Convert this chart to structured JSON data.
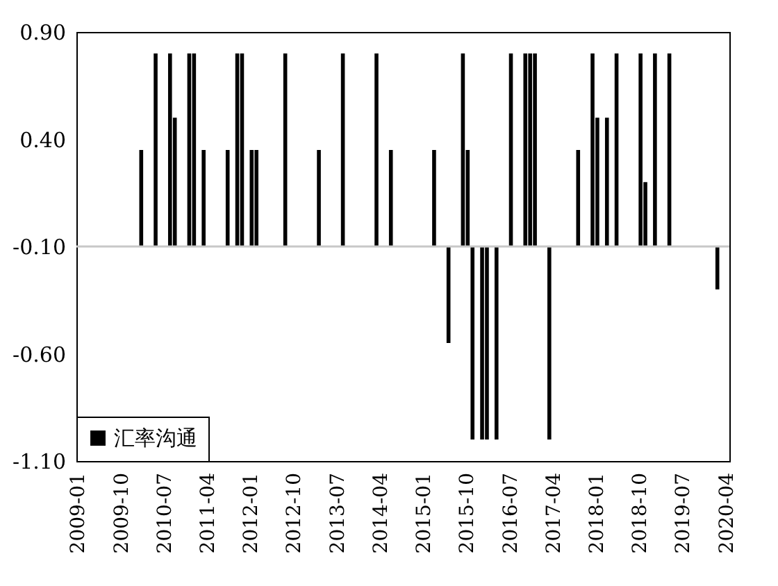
{
  "chart_data": {
    "type": "bar",
    "categories": [
      "2009-01",
      null,
      null,
      null,
      null,
      null,
      null,
      null,
      null,
      "2009-10",
      null,
      null,
      null,
      null,
      null,
      null,
      null,
      null,
      "2010-07",
      null,
      null,
      null,
      null,
      null,
      null,
      null,
      null,
      "2011-04",
      null,
      null,
      null,
      null,
      null,
      null,
      null,
      null,
      "2012-01",
      null,
      null,
      null,
      null,
      null,
      null,
      null,
      null,
      "2012-10",
      null,
      null,
      null,
      null,
      null,
      null,
      null,
      null,
      "2013-07",
      null,
      null,
      null,
      null,
      null,
      null,
      null,
      null,
      "2014-04",
      null,
      null,
      null,
      null,
      null,
      null,
      null,
      null,
      "2015-01",
      null,
      null,
      null,
      null,
      null,
      null,
      null,
      null,
      "2015-10",
      null,
      null,
      null,
      null,
      null,
      null,
      null,
      null,
      "2016-07",
      null,
      null,
      null,
      null,
      null,
      null,
      null,
      null,
      "2017-04",
      null,
      null,
      null,
      null,
      null,
      null,
      null,
      null,
      "2018-01",
      null,
      null,
      null,
      null,
      null,
      null,
      null,
      null,
      "2018-10",
      null,
      null,
      null,
      null,
      null,
      null,
      null,
      null,
      "2019-07",
      null,
      null,
      null,
      null,
      null,
      null,
      null,
      null,
      "2020-04"
    ],
    "series": [
      {
        "name": "汇率沟通",
        "color": "#000000",
        "values": [
          null,
          null,
          null,
          null,
          null,
          null,
          null,
          null,
          null,
          null,
          null,
          null,
          null,
          0.45,
          null,
          null,
          0.9,
          null,
          null,
          0.9,
          0.6,
          null,
          null,
          0.9,
          0.9,
          null,
          0.45,
          null,
          null,
          null,
          null,
          0.45,
          null,
          0.9,
          0.9,
          null,
          0.45,
          0.45,
          null,
          null,
          null,
          null,
          null,
          0.9,
          null,
          null,
          null,
          null,
          null,
          null,
          0.45,
          null,
          null,
          null,
          null,
          0.9,
          null,
          null,
          null,
          null,
          null,
          null,
          0.9,
          null,
          null,
          0.45,
          null,
          null,
          null,
          null,
          null,
          null,
          null,
          null,
          0.45,
          null,
          null,
          -0.45,
          null,
          null,
          0.9,
          0.45,
          -0.9,
          null,
          -0.9,
          -0.9,
          null,
          -0.9,
          null,
          null,
          0.9,
          null,
          null,
          0.9,
          0.9,
          0.9,
          null,
          null,
          -0.9,
          null,
          null,
          null,
          null,
          null,
          0.45,
          null,
          null,
          0.9,
          0.6,
          null,
          0.6,
          null,
          0.9,
          null,
          null,
          null,
          null,
          0.9,
          0.3,
          null,
          0.9,
          null,
          null,
          0.9,
          null,
          null,
          null,
          null,
          null,
          null,
          null,
          null,
          null,
          -0.2,
          null,
          null
        ],
        "base": [
          null,
          null,
          null,
          null,
          null,
          null,
          null,
          null,
          null,
          null,
          null,
          null,
          null,
          -0.1,
          null,
          null,
          -0.1,
          null,
          null,
          -0.1,
          -0.1,
          null,
          null,
          -0.1,
          -0.1,
          null,
          -0.1,
          null,
          null,
          null,
          null,
          -0.1,
          null,
          -0.1,
          -0.1,
          null,
          -0.1,
          -0.1,
          null,
          null,
          null,
          null,
          null,
          -0.1,
          null,
          null,
          null,
          null,
          null,
          null,
          -0.1,
          null,
          null,
          null,
          null,
          -0.1,
          null,
          null,
          null,
          null,
          null,
          null,
          -0.1,
          null,
          null,
          -0.1,
          null,
          null,
          null,
          null,
          null,
          null,
          null,
          null,
          -0.1,
          null,
          null,
          -0.1,
          null,
          null,
          -0.1,
          -0.1,
          -0.1,
          null,
          -0.1,
          -0.1,
          null,
          -0.1,
          null,
          null,
          -0.1,
          null,
          null,
          -0.1,
          -0.1,
          -0.1,
          null,
          null,
          -0.1,
          null,
          null,
          null,
          null,
          null,
          -0.1,
          null,
          null,
          -0.1,
          -0.1,
          null,
          -0.1,
          null,
          -0.1,
          null,
          null,
          null,
          null,
          -0.1,
          -0.1,
          null,
          -0.1,
          null,
          null,
          -0.1,
          null,
          null,
          null,
          null,
          null,
          null,
          null,
          null,
          null,
          -0.1,
          null,
          null
        ]
      }
    ],
    "ylim": [
      -1.1,
      0.9
    ],
    "yticks": [
      {
        "value": 0.9,
        "label": "0.90"
      },
      {
        "value": 0.4,
        "label": "0.40"
      },
      {
        "value": -0.1,
        "label": "-0.10"
      },
      {
        "value": -0.6,
        "label": "-0.60"
      },
      {
        "value": -1.1,
        "label": "-1.10"
      }
    ],
    "ref_lines": [
      {
        "axis": "y",
        "value": -0.1,
        "color": "#c8c8c8"
      }
    ],
    "legend": "bottom left"
  }
}
